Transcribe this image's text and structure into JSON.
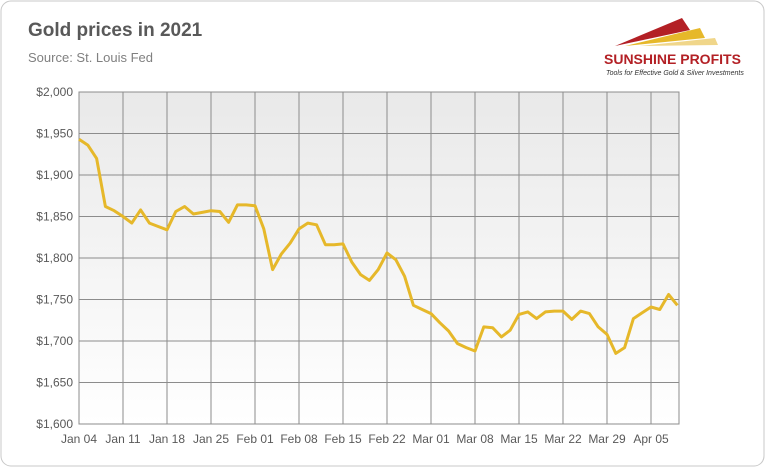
{
  "chart_data": {
    "type": "line",
    "title": "Gold prices in 2021",
    "subtitle": "Source: St. Louis Fed",
    "logo": {
      "name": "SUNSHINE PROFITS",
      "tagline": "Tools for Effective Gold & Silver Investments"
    },
    "categories": [
      "Jan 04",
      null,
      null,
      null,
      null,
      "Jan 11",
      null,
      null,
      null,
      null,
      "Jan 18",
      null,
      null,
      null,
      null,
      "Jan 25",
      null,
      null,
      null,
      null,
      "Feb 01",
      null,
      null,
      null,
      null,
      "Feb 08",
      null,
      null,
      null,
      null,
      "Feb 15",
      null,
      null,
      null,
      null,
      "Feb 22",
      null,
      null,
      null,
      null,
      "Mar 01",
      null,
      null,
      null,
      null,
      "Mar 08",
      null,
      null,
      null,
      null,
      "Mar 15",
      null,
      null,
      null,
      null,
      "Mar 22",
      null,
      null,
      null,
      null,
      "Mar 29",
      null,
      null,
      null,
      null,
      "Apr 05",
      null,
      null,
      null
    ],
    "series": [
      {
        "name": "Gold price",
        "color": "#e6b82a",
        "values": [
          1943,
          1936,
          1920,
          1862,
          1857,
          1850,
          1842,
          1858,
          1842,
          1838,
          1834,
          1856,
          1862,
          1853,
          1855,
          1857,
          1856,
          1843,
          1864,
          1864,
          1863,
          1835,
          1786,
          1805,
          1818,
          1835,
          1842,
          1840,
          1816,
          1816,
          1817,
          1795,
          1780,
          1773,
          1786,
          1806,
          1798,
          1778,
          1743,
          1738,
          1733,
          1722,
          1712,
          1697,
          1692,
          1688,
          1717,
          1716,
          1705,
          1713,
          1732,
          1735,
          1727,
          1735,
          1736,
          1736,
          1726,
          1736,
          1733,
          1717,
          1708,
          1685,
          1692,
          1727,
          1734,
          1741,
          1738,
          1756,
          1743
        ]
      }
    ],
    "ylim": [
      1600,
      2000
    ],
    "yticks": [
      {
        "value": 1600,
        "label": "$1,600"
      },
      {
        "value": 1650,
        "label": "$1,650"
      },
      {
        "value": 1700,
        "label": "$1,700"
      },
      {
        "value": 1750,
        "label": "$1,750"
      },
      {
        "value": 1800,
        "label": "$1,800"
      },
      {
        "value": 1850,
        "label": "$1,850"
      },
      {
        "value": 1900,
        "label": "$1,900"
      },
      {
        "value": 1950,
        "label": "$1,950"
      },
      {
        "value": 2000,
        "label": "$2,000"
      }
    ],
    "grid": true
  }
}
